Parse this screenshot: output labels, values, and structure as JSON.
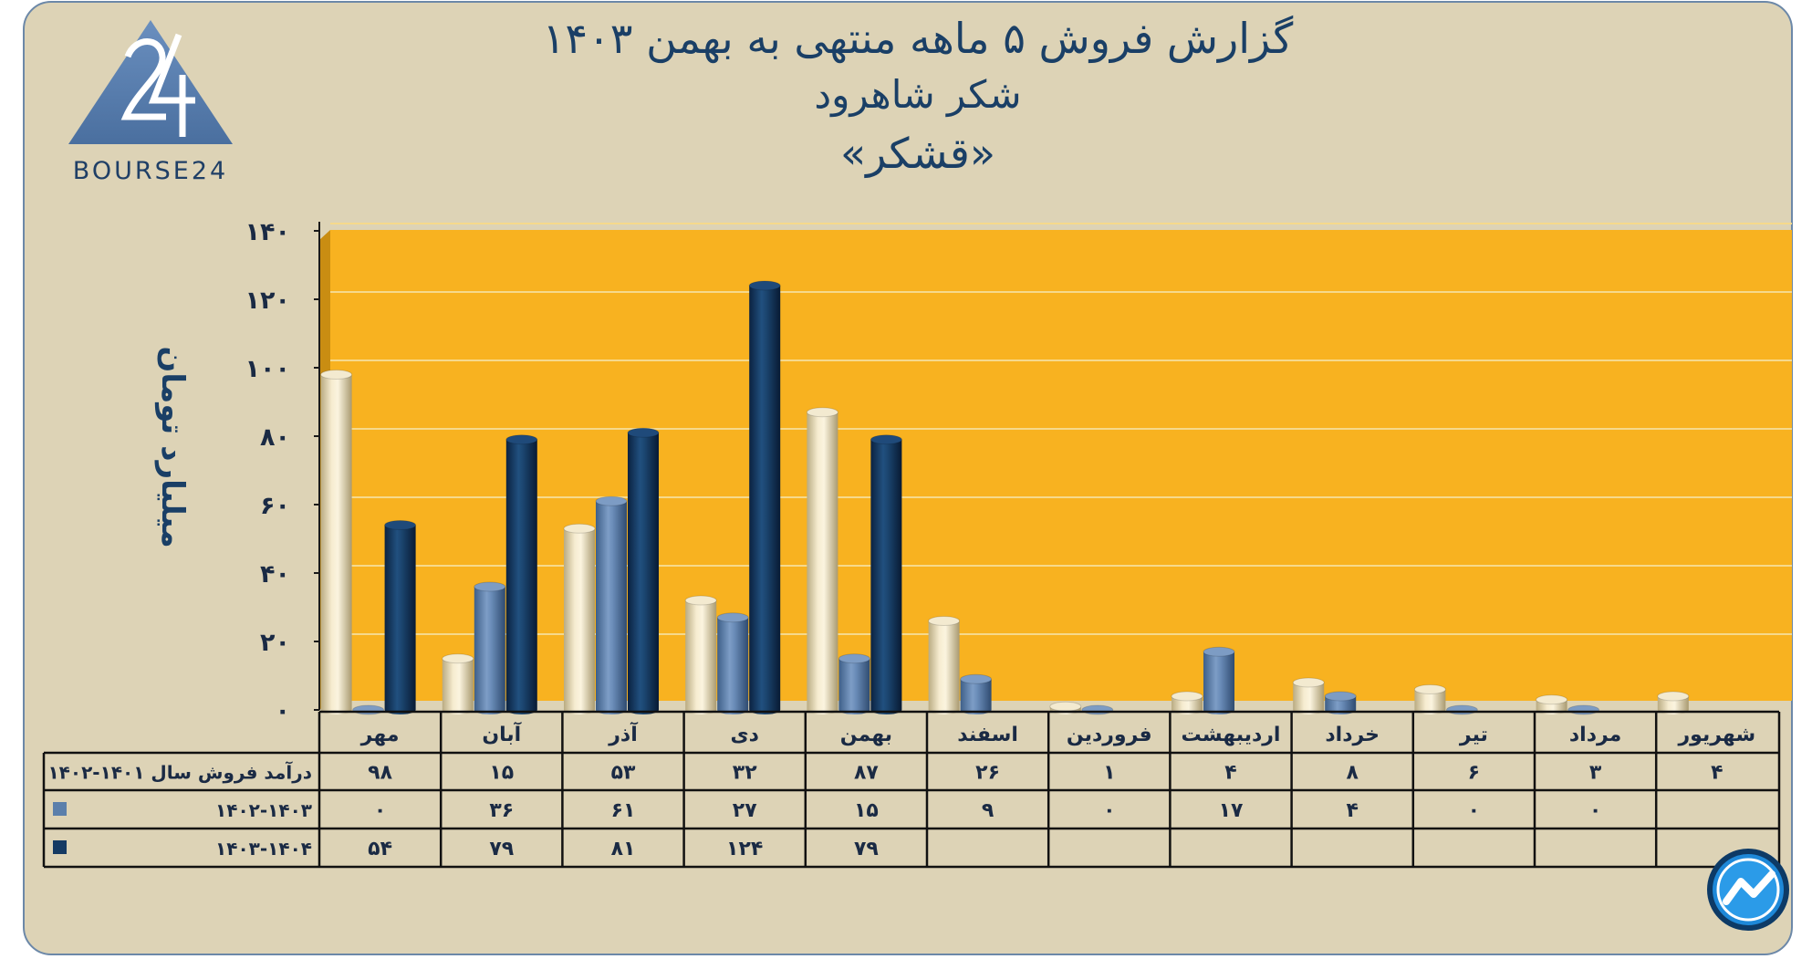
{
  "header": {
    "title_line1": "گزارش  فروش ۵ ماهه منتهی به بهمن ۱۴۰۳",
    "title_line2": "شکر شاهرود",
    "title_line3": "«قشکر»"
  },
  "logo": {
    "text": "BOURSE24",
    "mark": "24"
  },
  "colors": {
    "page_bg": "#ddd3b6",
    "plot_bg": "#f8b220",
    "side_wall": "#c98d12",
    "title": "#1a3f66",
    "series_1401": "#e9ddb6",
    "series_1402": "#5b7fab",
    "series_1403": "#153a63"
  },
  "chart_data": {
    "type": "bar",
    "title": "گزارش  فروش ۵ ماهه منتهی به بهمن ۱۴۰۳",
    "subtitle": "شکر شاهرود «قشکر»",
    "ylabel": "میلیارد تومان",
    "ylim": [
      0,
      140
    ],
    "yticks": [
      0,
      20,
      40,
      60,
      80,
      100,
      120,
      140
    ],
    "ytick_labels": [
      "۰",
      "۲۰",
      "۴۰",
      "۶۰",
      "۸۰",
      "۱۰۰",
      "۱۲۰",
      "۱۴۰"
    ],
    "grid": true,
    "legend": "data-table-left",
    "categories": [
      "مهر",
      "آبان",
      "آذر",
      "دی",
      "بهمن",
      "اسفند",
      "فروردین",
      "اردیبهشت",
      "خرداد",
      "تیر",
      "مرداد",
      "شهریور"
    ],
    "series": [
      {
        "name": "درآمد فروش سال ۱۴۰۱-۱۴۰۲",
        "color": "#e9ddb6",
        "values": [
          98,
          15,
          53,
          32,
          87,
          26,
          1,
          4,
          8,
          6,
          3,
          4
        ],
        "labels": [
          "۹۸",
          "۱۵",
          "۵۳",
          "۳۲",
          "۸۷",
          "۲۶",
          "۱",
          "۴",
          "۸",
          "۶",
          "۳",
          "۴"
        ]
      },
      {
        "name": "۱۴۰۲-۱۴۰۳",
        "color": "#5b7fab",
        "values": [
          0,
          36,
          61,
          27,
          15,
          9,
          0,
          17,
          4,
          0,
          0,
          null
        ],
        "labels": [
          "۰",
          "۳۶",
          "۶۱",
          "۲۷",
          "۱۵",
          "۹",
          "۰",
          "۱۷",
          "۴",
          "۰",
          "۰",
          ""
        ]
      },
      {
        "name": "۱۴۰۳-۱۴۰۴",
        "color": "#153a63",
        "values": [
          54,
          79,
          81,
          124,
          79,
          null,
          null,
          null,
          null,
          null,
          null,
          null
        ],
        "labels": [
          "۵۴",
          "۷۹",
          "۸۱",
          "۱۲۴",
          "۷۹",
          "",
          "",
          "",
          "",
          "",
          "",
          ""
        ]
      }
    ]
  }
}
